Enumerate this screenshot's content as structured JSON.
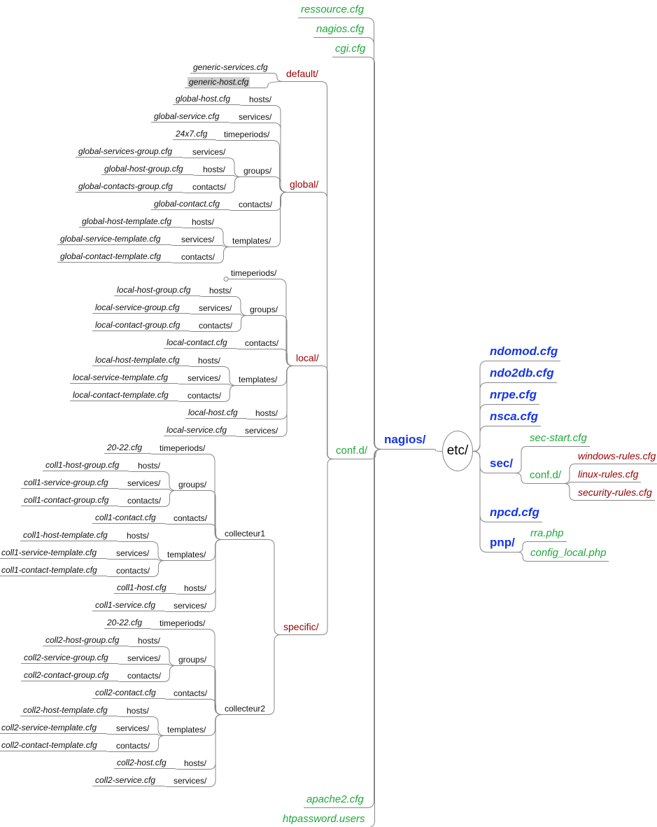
{
  "colors": {
    "folder_red": "#990000",
    "file_green": "#1fa83a",
    "top_blue": "#1535e8",
    "connector": "#888888",
    "highlight": "#cfcfcf"
  },
  "root": {
    "id": "etc",
    "label": "etc/"
  },
  "nodes": [
    {
      "id": "nagios",
      "label": "nagios/",
      "parent": "etc"
    },
    {
      "id": "ressource",
      "label": "ressource.cfg",
      "parent": "nagios"
    },
    {
      "id": "nagioscfg",
      "label": "nagios.cfg",
      "parent": "nagios"
    },
    {
      "id": "cgi",
      "label": "cgi.cfg",
      "parent": "nagios"
    },
    {
      "id": "confd",
      "label": "conf.d/",
      "parent": "nagios"
    },
    {
      "id": "apache",
      "label": "apache2.cfg",
      "parent": "nagios"
    },
    {
      "id": "htpass",
      "label": "htpassword.users",
      "parent": "nagios"
    },
    {
      "id": "default",
      "label": "default/",
      "parent": "confd"
    },
    {
      "id": "global",
      "label": "global/",
      "parent": "confd"
    },
    {
      "id": "local",
      "label": "local/",
      "parent": "confd"
    },
    {
      "id": "specific",
      "label": "specific/",
      "parent": "confd"
    },
    {
      "id": "def_gs",
      "label": "generic-services.cfg",
      "parent": "default"
    },
    {
      "id": "def_gh",
      "label": "generic-host.cfg",
      "parent": "default",
      "highlighted": true
    },
    {
      "id": "g_hosts",
      "label": "hosts/",
      "parent": "global"
    },
    {
      "id": "g_hosts_f",
      "label": "global-host.cfg",
      "parent": "g_hosts"
    },
    {
      "id": "g_serv",
      "label": "services/",
      "parent": "global"
    },
    {
      "id": "g_serv_f",
      "label": "global-service.cfg",
      "parent": "g_serv"
    },
    {
      "id": "g_tp",
      "label": "timeperiods/",
      "parent": "global"
    },
    {
      "id": "g_tp_f",
      "label": "24x7.cfg",
      "parent": "g_tp"
    },
    {
      "id": "g_groups",
      "label": "groups/",
      "parent": "global"
    },
    {
      "id": "g_gr_s",
      "label": "services/",
      "parent": "g_groups"
    },
    {
      "id": "g_gr_s_f",
      "label": "global-services-group.cfg",
      "parent": "g_gr_s"
    },
    {
      "id": "g_gr_h",
      "label": "hosts/",
      "parent": "g_groups"
    },
    {
      "id": "g_gr_h_f",
      "label": "global-host-group.cfg",
      "parent": "g_gr_h"
    },
    {
      "id": "g_gr_c",
      "label": "contacts/",
      "parent": "g_groups"
    },
    {
      "id": "g_gr_c_f",
      "label": "global-contacts-group.cfg",
      "parent": "g_gr_c"
    },
    {
      "id": "g_cont",
      "label": "contacts/",
      "parent": "global"
    },
    {
      "id": "g_cont_f",
      "label": "global-contact.cfg",
      "parent": "g_cont"
    },
    {
      "id": "g_tpl",
      "label": "templates/",
      "parent": "global"
    },
    {
      "id": "g_tpl_h",
      "label": "hosts/",
      "parent": "g_tpl"
    },
    {
      "id": "g_tpl_h_f",
      "label": "global-host-template.cfg",
      "parent": "g_tpl_h"
    },
    {
      "id": "g_tpl_s",
      "label": "services/",
      "parent": "g_tpl"
    },
    {
      "id": "g_tpl_s_f",
      "label": "global-service-template.cfg",
      "parent": "g_tpl_s"
    },
    {
      "id": "g_tpl_c",
      "label": "contacts/",
      "parent": "g_tpl"
    },
    {
      "id": "g_tpl_c_f",
      "label": "global-contact-template.cfg",
      "parent": "g_tpl_c"
    },
    {
      "id": "l_tp",
      "label": "timeperiods/",
      "parent": "local",
      "collapsed": true
    },
    {
      "id": "l_groups",
      "label": "groups/",
      "parent": "local"
    },
    {
      "id": "l_gr_h",
      "label": "hosts/",
      "parent": "l_groups"
    },
    {
      "id": "l_gr_h_f",
      "label": "local-host-group.cfg",
      "parent": "l_gr_h"
    },
    {
      "id": "l_gr_s",
      "label": "services/",
      "parent": "l_groups"
    },
    {
      "id": "l_gr_s_f",
      "label": "local-service-group.cfg",
      "parent": "l_gr_s"
    },
    {
      "id": "l_gr_c",
      "label": "contacts/",
      "parent": "l_groups"
    },
    {
      "id": "l_gr_c_f",
      "label": "local-contact-group.cfg",
      "parent": "l_gr_c"
    },
    {
      "id": "l_cont",
      "label": "contacts/",
      "parent": "local"
    },
    {
      "id": "l_cont_f",
      "label": "local-contact.cfg",
      "parent": "l_cont"
    },
    {
      "id": "l_tpl",
      "label": "templates/",
      "parent": "local"
    },
    {
      "id": "l_tpl_h",
      "label": "hosts/",
      "parent": "l_tpl"
    },
    {
      "id": "l_tpl_h_f",
      "label": "local-host-template.cfg",
      "parent": "l_tpl_h"
    },
    {
      "id": "l_tpl_s",
      "label": "services/",
      "parent": "l_tpl"
    },
    {
      "id": "l_tpl_s_f",
      "label": "local-service-template.cfg",
      "parent": "l_tpl_s"
    },
    {
      "id": "l_tpl_c",
      "label": "contacts/",
      "parent": "l_tpl"
    },
    {
      "id": "l_tpl_c_f",
      "label": "local-contact-template.cfg",
      "parent": "l_tpl_c"
    },
    {
      "id": "l_hosts",
      "label": "hosts/",
      "parent": "local"
    },
    {
      "id": "l_hosts_f",
      "label": "local-host.cfg",
      "parent": "l_hosts"
    },
    {
      "id": "l_serv",
      "label": "services/",
      "parent": "local"
    },
    {
      "id": "l_serv_f",
      "label": "local-service.cfg",
      "parent": "l_serv"
    },
    {
      "id": "c1",
      "label": "collecteur1",
      "parent": "specific"
    },
    {
      "id": "c1_tp",
      "label": "timeperiods/",
      "parent": "c1"
    },
    {
      "id": "c1_tp_f",
      "label": "20-22.cfg",
      "parent": "c1_tp"
    },
    {
      "id": "c1_groups",
      "label": "groups/",
      "parent": "c1"
    },
    {
      "id": "c1_gr_h",
      "label": "hosts/",
      "parent": "c1_groups"
    },
    {
      "id": "c1_gr_h_f",
      "label": "coll1-host-group.cfg",
      "parent": "c1_gr_h"
    },
    {
      "id": "c1_gr_s",
      "label": "services/",
      "parent": "c1_groups"
    },
    {
      "id": "c1_gr_s_f",
      "label": "coll1-service-group.cfg",
      "parent": "c1_gr_s"
    },
    {
      "id": "c1_gr_c",
      "label": "contacts/",
      "parent": "c1_groups"
    },
    {
      "id": "c1_gr_c_f",
      "label": "coll1-contact-group.cfg",
      "parent": "c1_gr_c"
    },
    {
      "id": "c1_cont",
      "label": "contacts/",
      "parent": "c1"
    },
    {
      "id": "c1_cont_f",
      "label": "coll1-contact.cfg",
      "parent": "c1_cont"
    },
    {
      "id": "c1_tpl",
      "label": "templates/",
      "parent": "c1"
    },
    {
      "id": "c1_tpl_h",
      "label": "hosts/",
      "parent": "c1_tpl"
    },
    {
      "id": "c1_tpl_h_f",
      "label": "coll1-host-template.cfg",
      "parent": "c1_tpl_h"
    },
    {
      "id": "c1_tpl_s",
      "label": "services/",
      "parent": "c1_tpl"
    },
    {
      "id": "c1_tpl_s_f",
      "label": "coll1-service-template.cfg",
      "parent": "c1_tpl_s"
    },
    {
      "id": "c1_tpl_c",
      "label": "contacts/",
      "parent": "c1_tpl"
    },
    {
      "id": "c1_tpl_c_f",
      "label": "coll1-contact-template.cfg",
      "parent": "c1_tpl_c"
    },
    {
      "id": "c1_hosts",
      "label": "hosts/",
      "parent": "c1"
    },
    {
      "id": "c1_hosts_f",
      "label": "coll1-host.cfg",
      "parent": "c1_hosts"
    },
    {
      "id": "c1_serv",
      "label": "services/",
      "parent": "c1"
    },
    {
      "id": "c1_serv_f",
      "label": "coll1-service.cfg",
      "parent": "c1_serv"
    },
    {
      "id": "c2",
      "label": "collecteur2",
      "parent": "specific"
    },
    {
      "id": "c2_tp",
      "label": "timeperiods/",
      "parent": "c2"
    },
    {
      "id": "c2_tp_f",
      "label": "20-22.cfg",
      "parent": "c2_tp"
    },
    {
      "id": "c2_groups",
      "label": "groups/",
      "parent": "c2"
    },
    {
      "id": "c2_gr_h",
      "label": "hosts/",
      "parent": "c2_groups"
    },
    {
      "id": "c2_gr_h_f",
      "label": "coll2-host-group.cfg",
      "parent": "c2_gr_h"
    },
    {
      "id": "c2_gr_s",
      "label": "services/",
      "parent": "c2_groups"
    },
    {
      "id": "c2_gr_s_f",
      "label": "coll2-service-group.cfg",
      "parent": "c2_gr_s"
    },
    {
      "id": "c2_gr_c",
      "label": "contacts/",
      "parent": "c2_groups"
    },
    {
      "id": "c2_gr_c_f",
      "label": "coll2-contact-group.cfg",
      "parent": "c2_gr_c"
    },
    {
      "id": "c2_cont",
      "label": "contacts/",
      "parent": "c2"
    },
    {
      "id": "c2_cont_f",
      "label": "coll2-contact.cfg",
      "parent": "c2_cont"
    },
    {
      "id": "c2_tpl",
      "label": "templates/",
      "parent": "c2"
    },
    {
      "id": "c2_tpl_h",
      "label": "hosts/",
      "parent": "c2_tpl"
    },
    {
      "id": "c2_tpl_h_f",
      "label": "coll2-host-template.cfg",
      "parent": "c2_tpl_h"
    },
    {
      "id": "c2_tpl_s",
      "label": "services/",
      "parent": "c2_tpl"
    },
    {
      "id": "c2_tpl_s_f",
      "label": "coll2-service-template.cfg",
      "parent": "c2_tpl_s"
    },
    {
      "id": "c2_tpl_c",
      "label": "contacts/",
      "parent": "c2_tpl"
    },
    {
      "id": "c2_tpl_c_f",
      "label": "coll2-contact-template.cfg",
      "parent": "c2_tpl_c"
    },
    {
      "id": "c2_hosts",
      "label": "hosts/",
      "parent": "c2"
    },
    {
      "id": "c2_hosts_f",
      "label": "coll2-host.cfg",
      "parent": "c2_hosts"
    },
    {
      "id": "c2_serv",
      "label": "services/",
      "parent": "c2"
    },
    {
      "id": "c2_serv_f",
      "label": "coll2-service.cfg",
      "parent": "c2_serv"
    },
    {
      "id": "ndomod",
      "label": "ndomod.cfg",
      "parent": "etc"
    },
    {
      "id": "ndo2db",
      "label": "ndo2db.cfg",
      "parent": "etc"
    },
    {
      "id": "nrpe",
      "label": "nrpe.cfg",
      "parent": "etc"
    },
    {
      "id": "nsca",
      "label": "nsca.cfg",
      "parent": "etc"
    },
    {
      "id": "sec",
      "label": "sec/",
      "parent": "etc"
    },
    {
      "id": "sec_start",
      "label": "sec-start.cfg",
      "parent": "sec"
    },
    {
      "id": "sec_confd",
      "label": "conf.d/",
      "parent": "sec"
    },
    {
      "id": "win",
      "label": "windows-rules.cfg",
      "parent": "sec_confd"
    },
    {
      "id": "linux",
      "label": "linux-rules.cfg",
      "parent": "sec_confd"
    },
    {
      "id": "secrules",
      "label": "security-rules.cfg",
      "parent": "sec_confd"
    },
    {
      "id": "npcd",
      "label": "npcd.cfg",
      "parent": "etc"
    },
    {
      "id": "pnp",
      "label": "pnp/",
      "parent": "etc"
    },
    {
      "id": "rra",
      "label": "rra.php",
      "parent": "pnp"
    },
    {
      "id": "cfglocal",
      "label": "config_local.php",
      "parent": "pnp"
    }
  ]
}
